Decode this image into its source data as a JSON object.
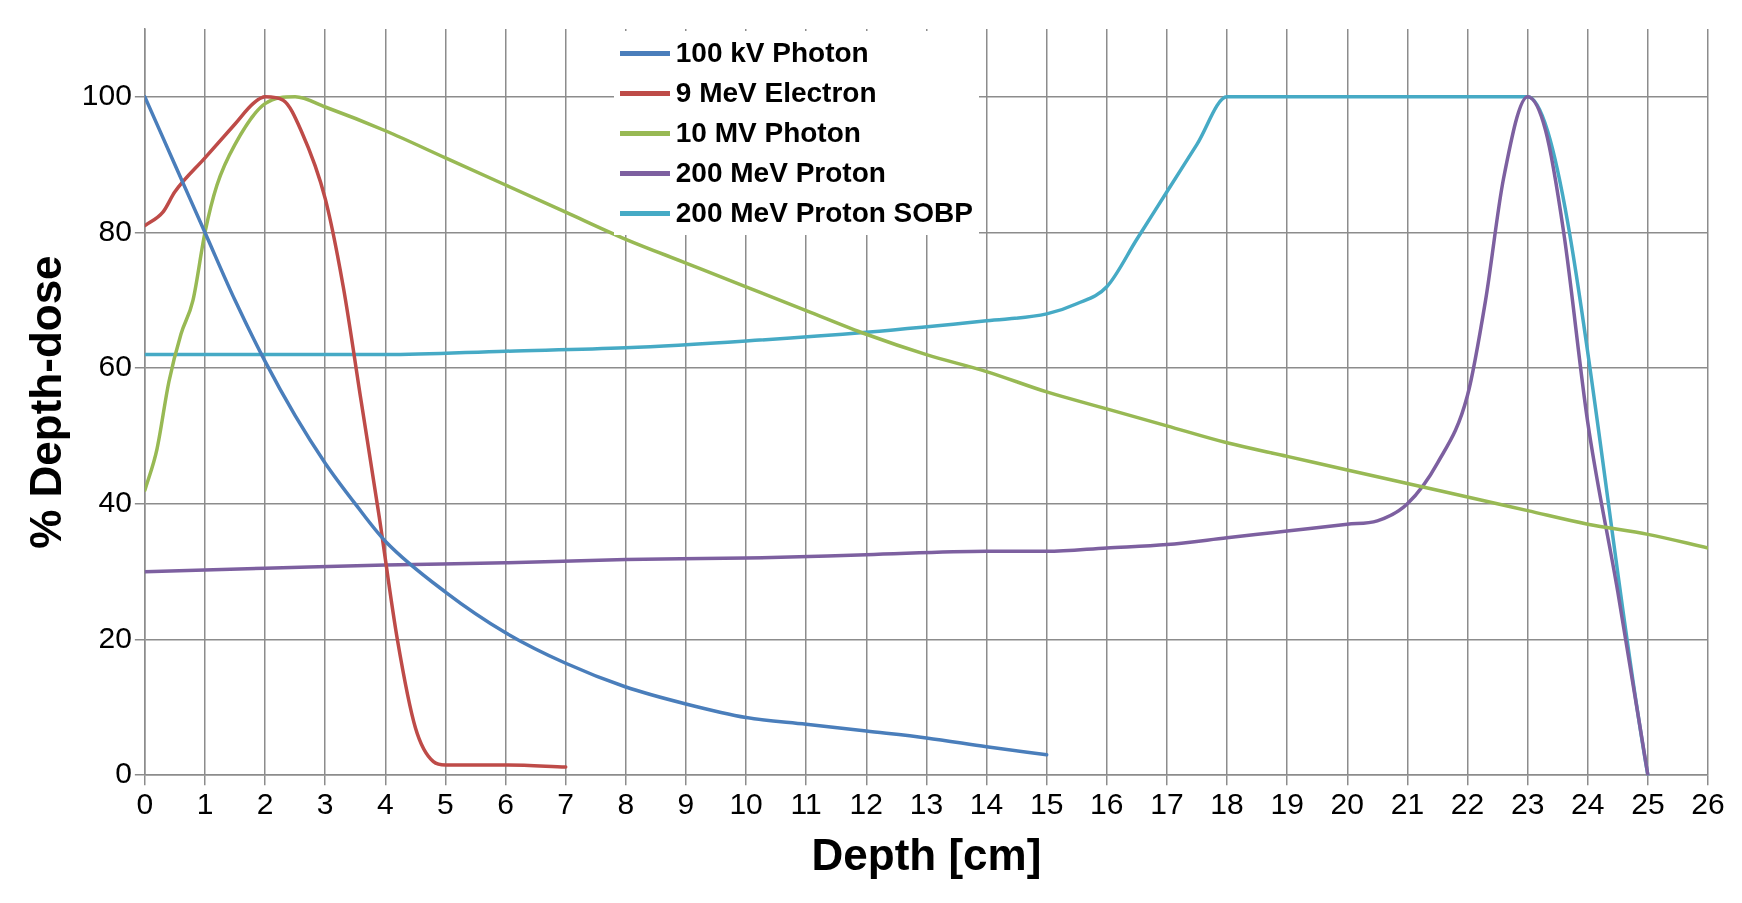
{
  "chart_data": {
    "type": "line",
    "xlabel": "Depth [cm]",
    "ylabel": "% Depth-dose",
    "xlim": [
      0,
      26
    ],
    "xticks": [
      0,
      1,
      2,
      3,
      4,
      5,
      6,
      7,
      8,
      9,
      10,
      11,
      12,
      13,
      14,
      15,
      16,
      17,
      18,
      19,
      20,
      21,
      22,
      23,
      24,
      25,
      26
    ],
    "ylim": [
      0,
      110
    ],
    "yticks": [
      0,
      20,
      40,
      60,
      80,
      100
    ],
    "grid": true,
    "legend": "top",
    "marker": "none",
    "line_style": "solid",
    "series": [
      {
        "name": "100 kV Photon",
        "color": "#4a7ebb",
        "x": [
          0,
          0.5,
          1,
          1.5,
          2,
          2.5,
          3,
          3.5,
          4,
          5,
          6,
          7,
          8,
          9,
          10,
          11,
          12,
          13,
          14,
          15
        ],
        "values": [
          100,
          90,
          80,
          70,
          61,
          53,
          46,
          40,
          34.5,
          27,
          21,
          16.5,
          13,
          10.5,
          8.5,
          7.5,
          6.5,
          5.5,
          4.2,
          3
        ]
      },
      {
        "name": "9 MeV Electron",
        "color": "#be4b48",
        "x": [
          0,
          0.3,
          0.5,
          1,
          1.5,
          1.8,
          2,
          2.3,
          2.6,
          3,
          3.3,
          3.6,
          3.9,
          4.2,
          4.5,
          4.8,
          5,
          6,
          7
        ],
        "values": [
          81,
          83,
          86,
          91,
          96,
          99,
          100,
          99.5,
          95,
          85,
          72,
          55,
          38,
          20,
          7,
          2,
          1.5,
          1.5,
          1.2
        ]
      },
      {
        "name": "10 MV Photon",
        "color": "#98b954",
        "x": [
          0,
          0.2,
          0.4,
          0.6,
          0.8,
          1,
          1.2,
          1.5,
          2,
          2.5,
          3,
          4,
          5,
          6,
          7,
          8,
          9,
          10,
          11,
          12,
          13,
          14,
          15,
          16,
          17,
          18,
          19,
          20,
          21,
          22,
          23,
          24,
          25,
          26
        ],
        "values": [
          42,
          48,
          58,
          65,
          70,
          80,
          87,
          93,
          99,
          100,
          98.5,
          95,
          91,
          87,
          83,
          79,
          75.5,
          72,
          68.5,
          65,
          62,
          59.5,
          56.5,
          54,
          51.5,
          49,
          47,
          45,
          43,
          41,
          39,
          37,
          35.5,
          33.5
        ]
      },
      {
        "name": "200 MeV Proton",
        "color": "#7d60a0",
        "x": [
          0,
          2,
          4,
          6,
          8,
          10,
          12,
          14,
          15,
          16,
          17,
          18,
          19,
          20,
          20.5,
          21,
          21.5,
          22,
          22.3,
          22.6,
          23,
          23.3,
          23.6,
          24,
          24.5,
          25
        ],
        "values": [
          30,
          30.5,
          31,
          31.3,
          31.8,
          32,
          32.5,
          33,
          33,
          33.5,
          34,
          35,
          36,
          37,
          37.5,
          40,
          46,
          56,
          70,
          88,
          100,
          95,
          80,
          52,
          27,
          0
        ]
      },
      {
        "name": "200 MeV Proton SOBP",
        "color": "#46aac5",
        "x": [
          0,
          2,
          4,
          6,
          8,
          10,
          12,
          14,
          15,
          15.5,
          16,
          16.5,
          17,
          17.5,
          18,
          23,
          25
        ],
        "values": [
          62,
          62,
          62,
          62.5,
          63,
          64,
          65.3,
          67,
          68,
          69.5,
          72,
          79,
          86,
          93,
          100,
          100,
          0
        ]
      }
    ]
  }
}
